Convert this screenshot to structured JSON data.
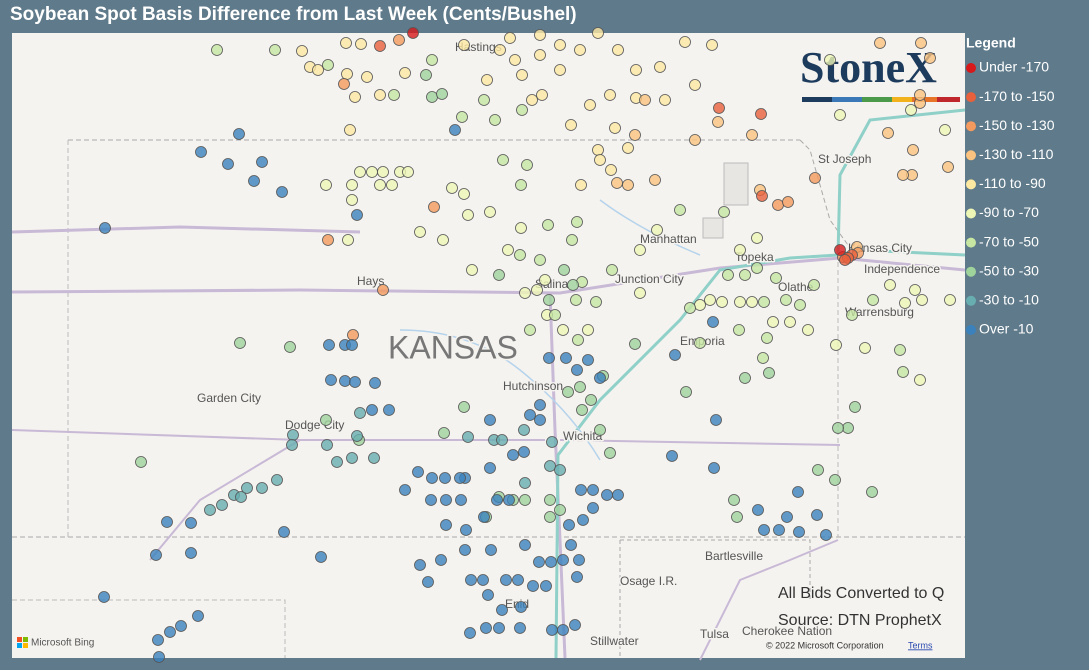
{
  "title": "Soybean Spot Basis Difference from Last Week (Cents/Bushel)",
  "logo": "StoneX",
  "legend": {
    "title": "Legend",
    "items": [
      {
        "label": "Under -170",
        "color": "#d7191c"
      },
      {
        "label": "-170 to -150",
        "color": "#e8603c"
      },
      {
        "label": "-150 to -130",
        "color": "#f49a5e"
      },
      {
        "label": "-130 to -110",
        "color": "#fbc37f"
      },
      {
        "label": "-110 to -90",
        "color": "#fde9a2"
      },
      {
        "label": "-90 to -70",
        "color": "#eef6b6"
      },
      {
        "label": "-70 to -50",
        "color": "#c6e6a2"
      },
      {
        "label": "-50 to -30",
        "color": "#9fd39c"
      },
      {
        "label": "-30 to -10",
        "color": "#68aeb0"
      },
      {
        "label": "Over -10",
        "color": "#3b82bd"
      }
    ]
  },
  "map_labels": [
    "KANSAS",
    "Hastings",
    "Hays",
    "Garden City",
    "Dodge City",
    "Hutchinson",
    "Wichita",
    "Salina",
    "Junction City",
    "Manhattan",
    "Topeka",
    "Kansas City",
    "Independence",
    "Olathe",
    "Emporia",
    "St Joseph",
    "Warrensburg",
    "Bartlesville",
    "Osage I.R.",
    "Tulsa",
    "Cherokee Nation",
    "Stillwater",
    "Enid"
  ],
  "footer": {
    "note": "All Bids Converted to Q",
    "source": "Source: DTN ProphetX",
    "copyright": "© 2022 Microsoft Corporation",
    "terms": "Terms",
    "provider": "Microsoft Bing"
  }
}
